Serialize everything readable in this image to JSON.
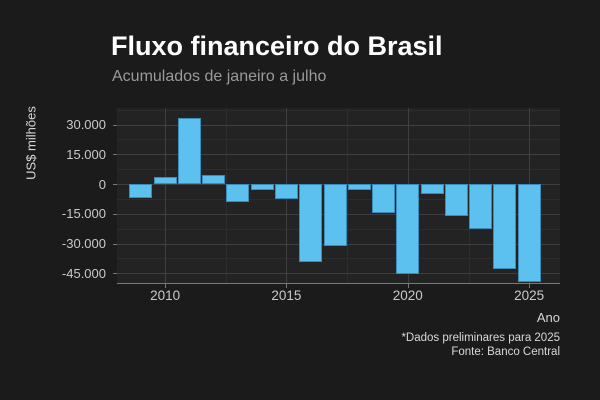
{
  "header": {
    "title": "Fluxo financeiro do Brasil",
    "subtitle": "Acumulados de janeiro a julho"
  },
  "caption": {
    "line1": "*Dados preliminares para 2025",
    "line2": "Fonte: Banco Central"
  },
  "colors": {
    "background": "#1b1b1c",
    "panel_background": "#232324",
    "bar_fill": "#5cc1ee",
    "bar_border": "#3b8cb8",
    "grid_major": "#3f3f41",
    "grid_minor": "#2d2d2f",
    "axis_line": "#787878",
    "title_text": "#ffffff",
    "subtitle_text": "#9a9a9a",
    "tick_text": "#c9c9c9",
    "axis_title_text": "#d6d6d6",
    "caption_text": "#d8d8d8"
  },
  "chart_data": {
    "type": "bar",
    "title": "Fluxo financeiro do Brasil",
    "subtitle": "Acumulados de janeiro a julho",
    "xlabel": "Ano",
    "ylabel": "US$ milhões",
    "categories": [
      2009,
      2010,
      2011,
      2012,
      2013,
      2014,
      2015,
      2016,
      2017,
      2018,
      2019,
      2020,
      2021,
      2022,
      2023,
      2024,
      2025
    ],
    "values": [
      -7000,
      3500,
      33500,
      4500,
      -9000,
      -3000,
      -7500,
      -39500,
      -31000,
      -3000,
      -14500,
      -45500,
      -5000,
      -16000,
      -22500,
      -43000,
      -49500
    ],
    "x_major_ticks": [
      2010,
      2015,
      2020,
      2025
    ],
    "x_minor_ticks": [
      2012.5,
      2017.5,
      2022.5
    ],
    "y_major_ticks": [
      30000,
      15000,
      0,
      -15000,
      -30000,
      -45000
    ],
    "y_major_tick_labels": [
      "30.000",
      "15.000",
      "0",
      "-15.000",
      "-30.000",
      "-45.000"
    ],
    "y_minor_ticks": [
      37500,
      22500,
      7500,
      -7500,
      -22500,
      -37500
    ],
    "xlim": [
      2008.02,
      2026.27
    ],
    "ylim": [
      -49900,
      38300
    ],
    "grid": "major and minor, on",
    "legend": "none",
    "caption": [
      "*Dados preliminares para 2025",
      "Fonte: Banco Central"
    ]
  }
}
